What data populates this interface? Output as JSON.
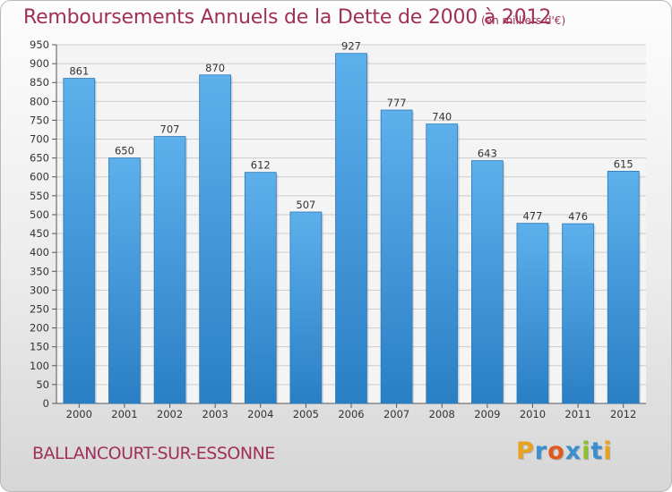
{
  "header": {
    "title": "Remboursements Annuels de la Dette de 2000 à 2012",
    "unit_note": "(en milliers d'€)"
  },
  "footer": {
    "commune": "BALLANCOURT-SUR-ESSONNE",
    "logo": {
      "text": "Proxiti",
      "letters": [
        {
          "ch": "P",
          "color": "#e8a21e"
        },
        {
          "ch": "r",
          "color": "#3a8fd0"
        },
        {
          "ch": "o",
          "color": "#e05a1e"
        },
        {
          "ch": "x",
          "color": "#3a8fd0"
        },
        {
          "ch": "i",
          "color": "#8cbf2a"
        },
        {
          "ch": "t",
          "color": "#3a8fd0"
        },
        {
          "ch": "i",
          "color": "#e8a21e"
        }
      ]
    }
  },
  "chart_data": {
    "type": "bar",
    "title": "Remboursements Annuels de la Dette de 2000 à 2012",
    "subtitle": "(en milliers d'€)",
    "categories": [
      "2000",
      "2001",
      "2002",
      "2003",
      "2004",
      "2005",
      "2006",
      "2007",
      "2008",
      "2009",
      "2010",
      "2011",
      "2012"
    ],
    "values": [
      861,
      650,
      707,
      870,
      612,
      507,
      927,
      777,
      740,
      643,
      477,
      476,
      615
    ],
    "xlabel": "",
    "ylabel": "",
    "ylim": [
      0,
      950
    ],
    "yticks": [
      0,
      50,
      100,
      150,
      200,
      250,
      300,
      350,
      400,
      450,
      500,
      550,
      600,
      650,
      700,
      750,
      800,
      850,
      900,
      950
    ],
    "grid": true,
    "bar_color": "#3c93d8",
    "bar_color_light": "#5eb0ec",
    "label_color": "#333333",
    "grid_color": "#cccccc"
  }
}
